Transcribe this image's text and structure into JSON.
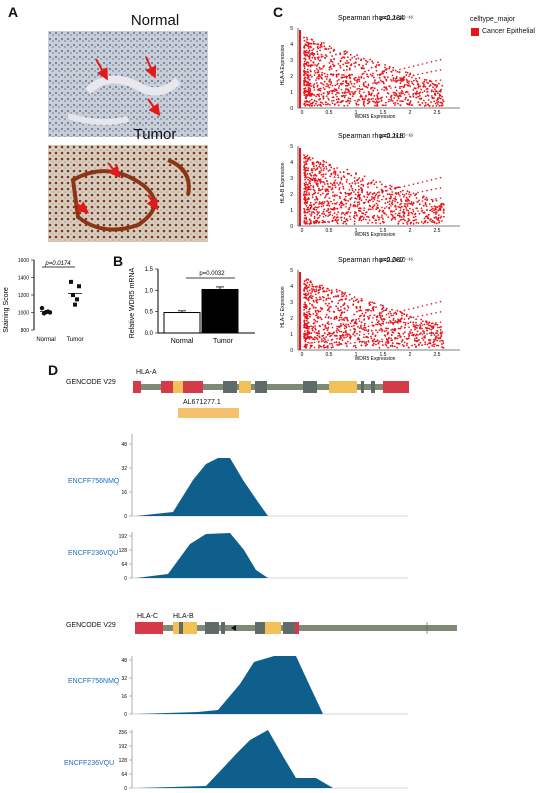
{
  "panels": {
    "a": "A",
    "b": "B",
    "c": "C",
    "d": "D"
  },
  "panel_a": {
    "normal_title": "Normal",
    "tumor_title": "Tumor",
    "chart": {
      "ylabel": "Staining Score",
      "yticks": [
        "1600",
        "1400",
        "1200",
        "1000",
        "800"
      ],
      "categories": [
        "Normal",
        "Tumor"
      ],
      "pvalue": "p=0.0174"
    }
  },
  "panel_b": {
    "ylabel": "Relative WDR5 mRNA",
    "yticks": [
      "1.5",
      "1.0",
      "0.5",
      "0.0"
    ],
    "categories": [
      "Normal",
      "Tumor"
    ],
    "pvalue": "p=0.0032"
  },
  "panel_c": {
    "legend_title": "celltype_major",
    "legend_item": "Cancer Epithelial",
    "legend_color": "#e8131b",
    "plots": [
      {
        "stat": "Spearman rho=0.134",
        "p": "p<2.2×10⁻¹⁶",
        "ylabel": "HLA-A Expression",
        "xlabel": "WDR5 Expression",
        "yticks": [
          "5",
          "4",
          "3",
          "2",
          "1",
          "0"
        ],
        "xticks": [
          "0",
          "0.5",
          "1",
          "1.5",
          "2",
          "2.5"
        ]
      },
      {
        "stat": "Spearman rho=0.118",
        "p": "p<2.2×10⁻¹⁶",
        "ylabel": "HLA-B Expression",
        "xlabel": "WDR5 Expression",
        "yticks": [
          "5",
          "4",
          "3",
          "2",
          "1",
          "0"
        ],
        "xticks": [
          "0",
          "0.5",
          "1",
          "1.5",
          "2",
          "2.5"
        ]
      },
      {
        "stat": "Spearman rho=0.087",
        "p": "p<2.2×10⁻¹⁶",
        "ylabel": "HLA-C Expression",
        "xlabel": "WDR5 Expression",
        "yticks": [
          "5",
          "4",
          "3",
          "2",
          "1",
          "0"
        ],
        "xticks": [
          "0",
          "0.5",
          "1",
          "1.5",
          "2",
          "2.5"
        ]
      }
    ]
  },
  "panel_d": {
    "top": {
      "gencode": "GENCODE  V29",
      "gene": "HLA-A",
      "lnc": "AL671277.1",
      "tracks": [
        {
          "name": "ENCFF756NMQ",
          "ticks": [
            "48",
            "32",
            "16",
            "0"
          ]
        },
        {
          "name": "ENCFF236VQU",
          "ticks": [
            "192",
            "128",
            "64",
            "0"
          ]
        }
      ]
    },
    "bottom": {
      "gencode": "GENCODE  V29",
      "gene1": "HLA-C",
      "gene2": "HLA-B",
      "tracks": [
        {
          "name": "ENCFF756NMQ",
          "ticks": [
            "48",
            "32",
            "16",
            "0"
          ]
        },
        {
          "name": "ENCFF236VQU",
          "ticks": [
            "256",
            "192",
            "128",
            "64",
            "0"
          ]
        }
      ]
    }
  },
  "chart_data": [
    {
      "type": "scatter",
      "categories": [
        "Normal",
        "Tumor"
      ],
      "ylabel": "Staining Score",
      "ylim": [
        800,
        1600
      ],
      "series": [
        {
          "name": "Normal",
          "values": [
            1050,
            1000,
            990,
            1010,
            1005
          ]
        },
        {
          "name": "Tumor",
          "values": [
            1350,
            1300,
            1200,
            1150,
            1090
          ]
        }
      ]
    },
    {
      "type": "bar",
      "categories": [
        "Normal",
        "Tumor"
      ],
      "values": [
        0.48,
        1.02
      ],
      "errors": [
        0.04,
        0.06
      ],
      "ylabel": "Relative WDR5 mRNA",
      "ylim": [
        0,
        1.5
      ]
    }
  ]
}
